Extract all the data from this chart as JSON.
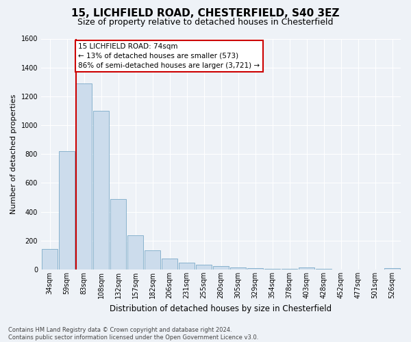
{
  "title_line1": "15, LICHFIELD ROAD, CHESTERFIELD, S40 3EZ",
  "title_line2": "Size of property relative to detached houses in Chesterfield",
  "xlabel": "Distribution of detached houses by size in Chesterfield",
  "ylabel": "Number of detached properties",
  "categories": [
    "34sqm",
    "59sqm",
    "83sqm",
    "108sqm",
    "132sqm",
    "157sqm",
    "182sqm",
    "206sqm",
    "231sqm",
    "255sqm",
    "280sqm",
    "305sqm",
    "329sqm",
    "354sqm",
    "378sqm",
    "403sqm",
    "428sqm",
    "452sqm",
    "477sqm",
    "501sqm",
    "526sqm"
  ],
  "values": [
    140,
    820,
    1290,
    1100,
    490,
    238,
    130,
    75,
    47,
    32,
    25,
    15,
    10,
    6,
    4,
    13,
    2,
    0,
    0,
    0,
    10
  ],
  "bar_color": "#ccdcec",
  "bar_edge_color": "#7aaac8",
  "ylim": [
    0,
    1600
  ],
  "yticks": [
    0,
    200,
    400,
    600,
    800,
    1000,
    1200,
    1400,
    1600
  ],
  "vline_position": 1.52,
  "annotation_text_line1": "15 LICHFIELD ROAD: 74sqm",
  "annotation_text_line2": "← 13% of detached houses are smaller (573)",
  "annotation_text_line3": "86% of semi-detached houses are larger (3,721) →",
  "vline_color": "#cc0000",
  "annotation_box_edge": "#cc0000",
  "footer_text": "Contains HM Land Registry data © Crown copyright and database right 2024.\nContains public sector information licensed under the Open Government Licence v3.0.",
  "background_color": "#eef2f7",
  "grid_color": "#ffffff",
  "title_fontsize": 11,
  "subtitle_fontsize": 9,
  "xlabel_fontsize": 8.5,
  "ylabel_fontsize": 8,
  "tick_fontsize": 7,
  "annotation_fontsize": 7.5,
  "footer_fontsize": 6
}
